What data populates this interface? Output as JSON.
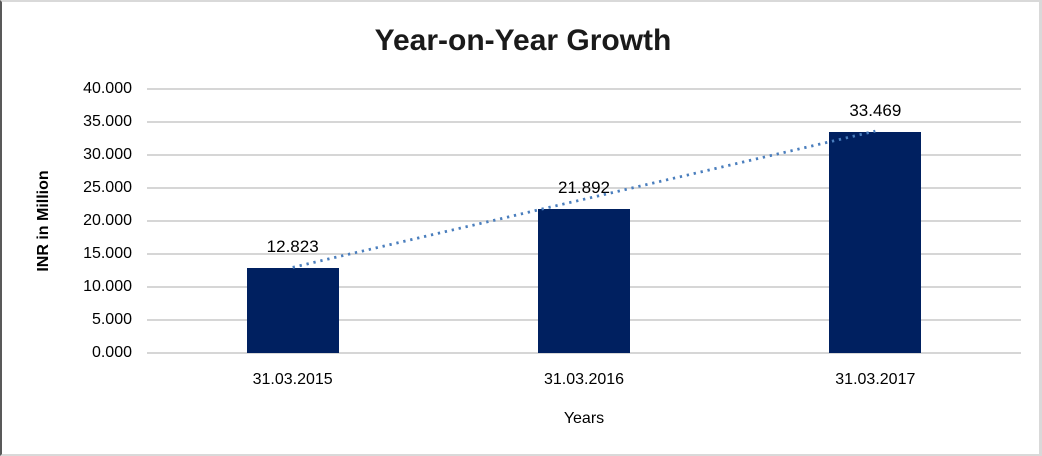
{
  "chart_data": {
    "type": "bar",
    "title": "Year-on-Year Growth",
    "categories": [
      "31.03.2015",
      "31.03.2016",
      "31.03.2017"
    ],
    "values": [
      12.823,
      21.892,
      33.469
    ],
    "value_labels": [
      "12.823",
      "21.892",
      "33.469"
    ],
    "xlabel": "Years",
    "ylabel": "INR in Million",
    "ylim": [
      0,
      40
    ],
    "ytick_step": 5,
    "yticks_top_to_bottom": [
      "40.000",
      "35.000",
      "30.000",
      "25.000",
      "20.000",
      "15.000",
      "10.000",
      "5.000",
      "0.000"
    ],
    "grid": true,
    "legend": "none",
    "bar_color": "#002060",
    "trendline": {
      "type": "linear",
      "style": "dotted",
      "color": "#4a7ebd",
      "from_category": "31.03.2015",
      "to_category": "31.03.2017"
    }
  },
  "colors": {
    "background": "#ffffff",
    "gridline": "#d6d6d6",
    "text": "#000000",
    "frame_border": "#d9d9d9",
    "frame_border_left": "#595959"
  }
}
